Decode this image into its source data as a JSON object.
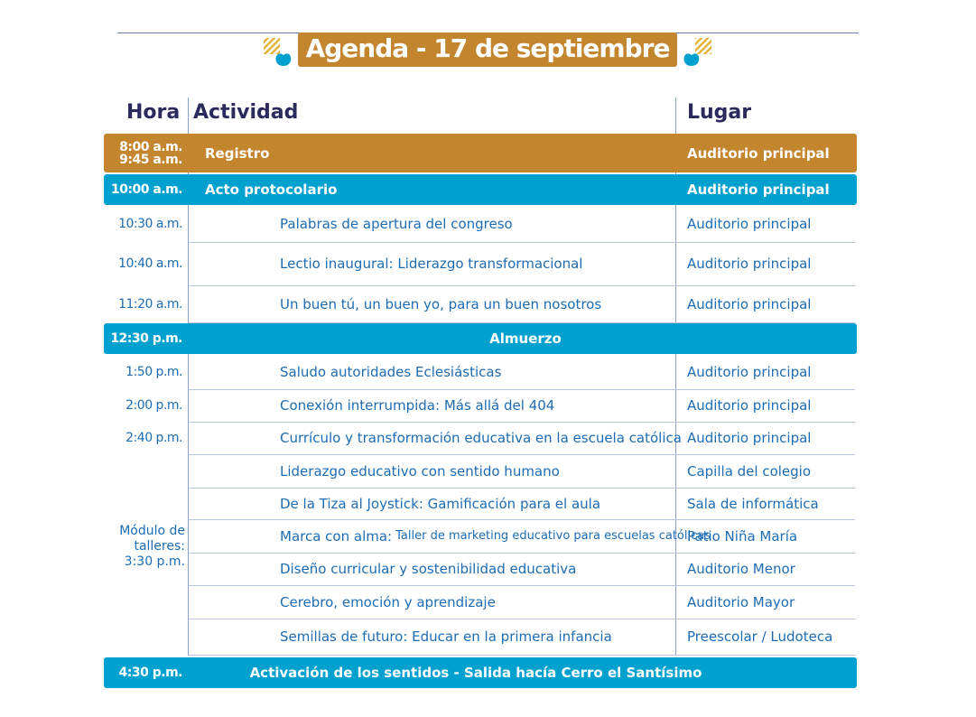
{
  "title": "Agenda - 17 de septiembre",
  "colors": {
    "gold": "#c4852f",
    "blue": "#00a0cf",
    "text": "#1d6cb3",
    "header": "#2b2a5c"
  },
  "headers": {
    "time": "Hora",
    "activity": "Actividad",
    "place": "Lugar"
  },
  "rows": [
    {
      "time": "8:00 a.m.\n9:45 a.m.",
      "activity": "Registro",
      "place": "Auditorio principal",
      "style": "gold"
    },
    {
      "time": "10:00 a.m.",
      "activity": "Acto protocolario",
      "place": "Auditorio principal",
      "style": "blue"
    },
    {
      "time": "10:30 a.m.",
      "activity": "Palabras de apertura del congreso",
      "place": "Auditorio principal",
      "style": "plain"
    },
    {
      "time": "10:40 a.m.",
      "activity": "Lectio inaugural: Liderazgo transformacional",
      "place": "Auditorio principal",
      "style": "plain"
    },
    {
      "time": "11:20 a.m.",
      "activity": "Un buen tú, un buen yo, para un buen nosotros",
      "place": "Auditorio principal",
      "style": "plain"
    },
    {
      "time": "12:30 p.m.",
      "activity": "Almuerzo",
      "place": "",
      "style": "blue",
      "center": true
    },
    {
      "time": "1:50 p.m.",
      "activity": "Saludo autoridades Eclesiásticas",
      "place": "Auditorio principal",
      "style": "plain"
    },
    {
      "time": "2:00 p.m.",
      "activity": "Conexión interrumpida: Más allá del 404",
      "place": "Auditorio principal",
      "style": "plain"
    },
    {
      "time": "2:40 p.m.",
      "activity": "Currículo y transformación educativa en la escuela católica",
      "place": "Auditorio principal",
      "style": "plain"
    },
    {
      "time": "",
      "activity": "Liderazgo educativo con sentido humano",
      "place": "Capilla del colegio",
      "style": "plain"
    },
    {
      "time": "",
      "activity": "De la Tiza al Joystick: Gamificación para el aula",
      "place": "Sala de informática",
      "style": "plain"
    },
    {
      "time": "",
      "activity": "Marca con alma:",
      "activity_small": "Taller de marketing educativo para escuelas católicas",
      "place": "Patio Niña María",
      "style": "plain"
    },
    {
      "time": "",
      "activity": "Diseño curricular y sostenibilidad educativa",
      "place": "Auditorio Menor",
      "style": "plain"
    },
    {
      "time": "",
      "activity": "Cerebro, emoción y aprendizaje",
      "place": "Auditorio Mayor",
      "style": "plain"
    },
    {
      "time": "",
      "activity": "Semillas de futuro: Educar en la primera infancia",
      "place": "Preescolar / Ludoteca",
      "style": "plain"
    },
    {
      "time": "4:30 p.m.",
      "activity": "Activación de los sentidos  - Salida hacía Cerro el Santísimo",
      "place": "",
      "style": "blue",
      "center": true
    }
  ],
  "workshop_time": "Módulo de\ntalleres:\n3:30 p.m."
}
